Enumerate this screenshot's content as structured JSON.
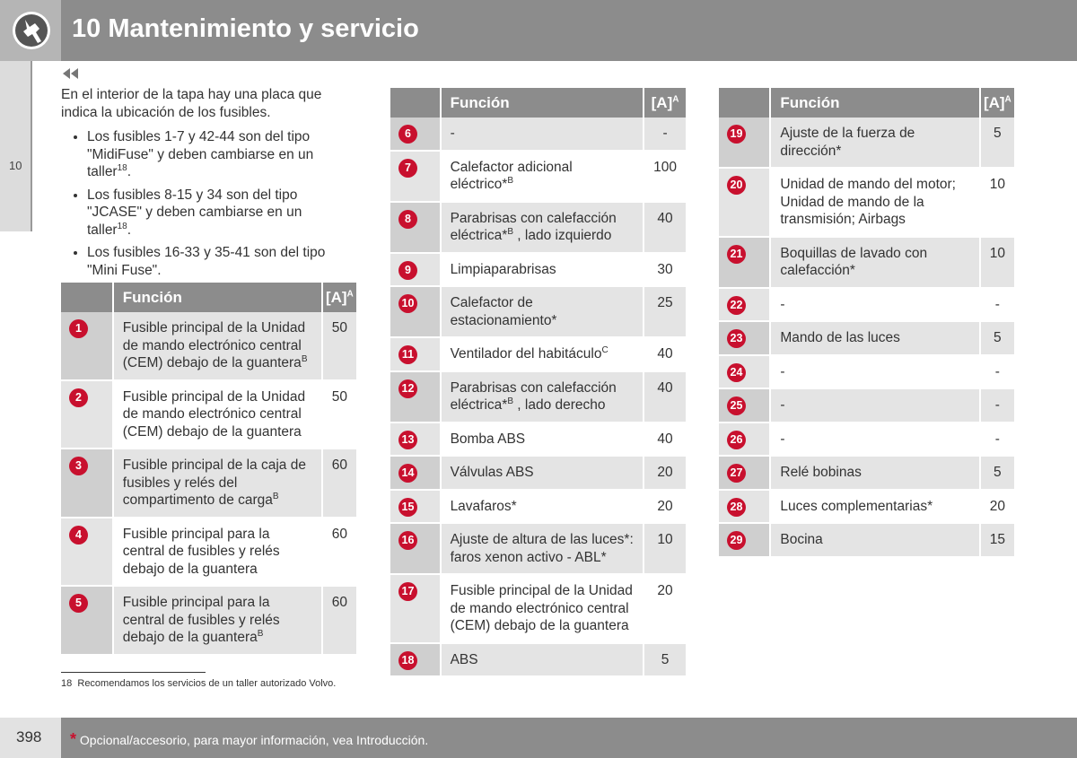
{
  "header": {
    "title": "10 Mantenimiento y servicio"
  },
  "side_tab": "10",
  "intro": {
    "text": "En el interior de la tapa hay una placa que indica la ubicación de los fusibles.",
    "bullets": [
      {
        "text": "Los fusibles 1-7 y 42-44 son del tipo \"MidiFuse\" y deben cambiarse en un taller",
        "sup": "18",
        "after": "."
      },
      {
        "text": "Los fusibles 8-15 y 34 son del tipo \"JCASE\" y deben cambiarse en un taller",
        "sup": "18",
        "after": "."
      },
      {
        "text": "Los fusibles 16-33 y 35-41 son del tipo \"Mini Fuse\"."
      }
    ]
  },
  "tables": [
    {
      "header": {
        "function": "Función",
        "amp": "[A]",
        "amp_sup": "A"
      },
      "rows": [
        {
          "num": 1,
          "func": {
            "text": "Fusible principal de la Unidad de mando electrónico central (CEM) debajo de la guantera",
            "sup": "B"
          },
          "amp": 50
        },
        {
          "num": 2,
          "func": {
            "text": "Fusible principal de la Unidad de mando electrónico central (CEM) debajo de la guantera"
          },
          "amp": 50
        },
        {
          "num": 3,
          "func": {
            "text": "Fusible principal de la caja de fusibles y relés del compartimento de carga",
            "sup": "B"
          },
          "amp": 60
        },
        {
          "num": 4,
          "func": {
            "text": "Fusible principal para la central de fusibles y relés debajo de la guantera"
          },
          "amp": 60
        },
        {
          "num": 5,
          "func": {
            "text": "Fusible principal para la central de fusibles y relés debajo de la guantera",
            "sup": "B"
          },
          "amp": 60
        }
      ]
    },
    {
      "header": {
        "function": "Función",
        "amp": "[A]",
        "amp_sup": "A"
      },
      "rows": [
        {
          "num": 6,
          "func": {
            "text": "-"
          },
          "amp": "-"
        },
        {
          "num": 7,
          "func": {
            "text": "Calefactor adicional eléctrico*",
            "sup": "B"
          },
          "amp": 100
        },
        {
          "num": 8,
          "func": {
            "text": "Parabrisas con calefacción eléctrica*",
            "sup": "B",
            "after": " , lado izquierdo"
          },
          "amp": 40
        },
        {
          "num": 9,
          "func": {
            "text": "Limpiaparabrisas"
          },
          "amp": 30
        },
        {
          "num": 10,
          "func": {
            "text": "Calefactor de estacionamiento*"
          },
          "amp": 25
        },
        {
          "num": 11,
          "func": {
            "text": "Ventilador del habitáculo",
            "sup": "C"
          },
          "amp": 40
        },
        {
          "num": 12,
          "func": {
            "text": "Parabrisas con calefacción eléctrica*",
            "sup": "B",
            "after": " , lado derecho"
          },
          "amp": 40
        },
        {
          "num": 13,
          "func": {
            "text": "Bomba ABS"
          },
          "amp": 40
        },
        {
          "num": 14,
          "func": {
            "text": "Válvulas ABS"
          },
          "amp": 20
        },
        {
          "num": 15,
          "func": {
            "text": "Lavafaros*"
          },
          "amp": 20
        },
        {
          "num": 16,
          "func": {
            "text": "Ajuste de altura de las luces*: faros xenon activo - ABL*"
          },
          "amp": 10
        },
        {
          "num": 17,
          "func": {
            "text": "Fusible principal de la Unidad de mando electrónico central (CEM) debajo de la guantera"
          },
          "amp": 20
        },
        {
          "num": 18,
          "func": {
            "text": "ABS"
          },
          "amp": 5
        }
      ]
    },
    {
      "header": {
        "function": "Función",
        "amp": "[A]",
        "amp_sup": "A"
      },
      "rows": [
        {
          "num": 19,
          "func": {
            "text": "Ajuste de la fuerza de dirección*"
          },
          "amp": 5
        },
        {
          "num": 20,
          "func": {
            "text": "Unidad de mando del motor; Unidad de mando de la transmisión; Airbags"
          },
          "amp": 10
        },
        {
          "num": 21,
          "func": {
            "text": "Boquillas de lavado con calefacción*"
          },
          "amp": 10
        },
        {
          "num": 22,
          "func": {
            "text": "-"
          },
          "amp": "-"
        },
        {
          "num": 23,
          "func": {
            "text": "Mando de las luces"
          },
          "amp": 5
        },
        {
          "num": 24,
          "func": {
            "text": "-"
          },
          "amp": "-"
        },
        {
          "num": 25,
          "func": {
            "text": "-"
          },
          "amp": "-"
        },
        {
          "num": 26,
          "func": {
            "text": "-"
          },
          "amp": "-"
        },
        {
          "num": 27,
          "func": {
            "text": "Relé bobinas"
          },
          "amp": 5
        },
        {
          "num": 28,
          "func": {
            "text": "Luces complementarias*"
          },
          "amp": 20
        },
        {
          "num": 29,
          "func": {
            "text": "Bocina"
          },
          "amp": 15
        }
      ]
    }
  ],
  "footnote": {
    "number": "18",
    "text": "Recomendamos los servicios de un taller autorizado Volvo."
  },
  "footer": {
    "page": "398",
    "star": "*",
    "text": "Opcional/accesorio, para mayor información, vea Introducción."
  }
}
